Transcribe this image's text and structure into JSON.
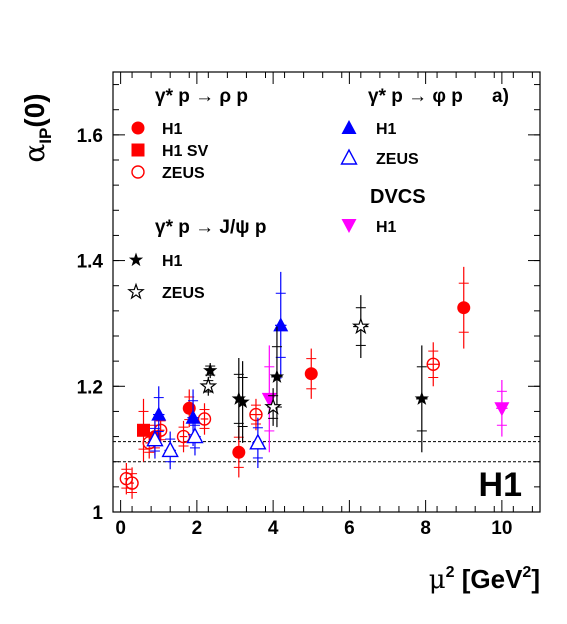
{
  "chart_data": {
    "type": "scatter",
    "ylabel_main": "α",
    "ylabel_sub": "IP",
    "ylabel_tail": "(0)",
    "xlabel_main": "μ",
    "xlabel_sup": "2",
    "xlabel_unit": " [GeV",
    "xlabel_unit_sup": "2",
    "xlabel_close": "]",
    "xlim": [
      -0.2,
      11
    ],
    "ylim": [
      1.0,
      1.7
    ],
    "x_ticks": [
      0,
      2,
      4,
      6,
      8,
      10
    ],
    "y_ticks": [
      1,
      1.2,
      1.4,
      1.6
    ],
    "x_tick_labels": [
      "0",
      "2",
      "4",
      "6",
      "8",
      "10"
    ],
    "y_tick_labels": [
      "1",
      "1.2",
      "1.4",
      "1.6"
    ],
    "reference_lines": [
      1.08,
      1.112
    ],
    "panel_label": "a)",
    "experiment_logo": "H1",
    "legend": {
      "rho_title": "γ* p → ρ p",
      "phi_title": "γ* p → φ p",
      "jpsi_title": "γ* p → J/ψ p",
      "dvcs_title": "DVCS",
      "entries": {
        "rho_h1": "H1",
        "rho_h1sv": "H1 SV",
        "rho_zeus": "ZEUS",
        "phi_h1": "H1",
        "phi_zeus": "ZEUS",
        "dvcs_h1": "H1",
        "jpsi_h1": "H1",
        "jpsi_zeus": "ZEUS"
      }
    },
    "series": [
      {
        "key": "rho_h1",
        "marker": "circle-filled",
        "color": "#ff0000",
        "points": [
          {
            "x": 0.9,
            "y": 1.12,
            "ey": 0.03,
            "ex": 0.1
          },
          {
            "x": 1.8,
            "y": 1.165,
            "ey": 0.03,
            "ex": 0.15
          },
          {
            "x": 3.1,
            "y": 1.095,
            "ey": 0.04,
            "ex": 0.15
          },
          {
            "x": 5.0,
            "y": 1.22,
            "ey": 0.04,
            "ex": 0.15
          },
          {
            "x": 9.0,
            "y": 1.325,
            "ey": 0.065,
            "ex": 0.15
          }
        ]
      },
      {
        "key": "rho_h1sv",
        "marker": "square-filled",
        "color": "#ff0000",
        "points": [
          {
            "x": 0.6,
            "y": 1.13,
            "ey": 0.05,
            "ex": 0.1
          }
        ]
      },
      {
        "key": "rho_zeus",
        "marker": "circle-open",
        "color": "#ff0000",
        "points": [
          {
            "x": 0.15,
            "y": 1.053,
            "ey": 0.025,
            "ex": 0.05
          },
          {
            "x": 0.3,
            "y": 1.046,
            "ey": 0.025,
            "ex": 0.05
          },
          {
            "x": 0.75,
            "y": 1.11,
            "ey": 0.025,
            "ex": 0.1
          },
          {
            "x": 1.05,
            "y": 1.13,
            "ey": 0.025,
            "ex": 0.1
          },
          {
            "x": 1.65,
            "y": 1.12,
            "ey": 0.025,
            "ex": 0.1
          },
          {
            "x": 2.2,
            "y": 1.148,
            "ey": 0.025,
            "ex": 0.1
          },
          {
            "x": 3.55,
            "y": 1.155,
            "ey": 0.025,
            "ex": 0.15
          },
          {
            "x": 8.2,
            "y": 1.235,
            "ey": 0.035,
            "ex": 0.15
          }
        ]
      },
      {
        "key": "phi_h1",
        "marker": "triangle-up-filled",
        "color": "#0000ff",
        "points": [
          {
            "x": 1.0,
            "y": 1.155,
            "ey": 0.045,
            "ex": 0.15
          },
          {
            "x": 1.9,
            "y": 1.15,
            "ey": 0.045,
            "ex": 0.15
          },
          {
            "x": 4.2,
            "y": 1.297,
            "ey": 0.085,
            "ex": 0.15
          }
        ]
      },
      {
        "key": "phi_zeus",
        "marker": "triangle-up-open",
        "color": "#0000ff",
        "points": [
          {
            "x": 0.9,
            "y": 1.115,
            "ey": 0.03,
            "ex": 0.15
          },
          {
            "x": 1.3,
            "y": 1.098,
            "ey": 0.03,
            "ex": 0.15
          },
          {
            "x": 1.95,
            "y": 1.12,
            "ey": 0.03,
            "ex": 0.15
          },
          {
            "x": 3.6,
            "y": 1.11,
            "ey": 0.04,
            "ex": 0.15
          }
        ]
      },
      {
        "key": "dvcs_h1",
        "marker": "triangle-down-filled",
        "color": "#ff00ff",
        "points": [
          {
            "x": 3.9,
            "y": 1.18,
            "ey": 0.085,
            "ex": 0.1
          },
          {
            "x": 10.0,
            "y": 1.165,
            "ey": 0.045,
            "ex": 0.15
          }
        ]
      },
      {
        "key": "jpsi_h1",
        "marker": "star-filled",
        "color": "#000000",
        "points": [
          {
            "x": 2.35,
            "y": 1.225,
            "ey": 0.012,
            "ex": 0.1
          },
          {
            "x": 3.1,
            "y": 1.18,
            "ey": 0.065,
            "ex": 0.1
          },
          {
            "x": 3.2,
            "y": 1.175,
            "ey": 0.065,
            "ex": 0.1
          },
          {
            "x": 4.1,
            "y": 1.215,
            "ey": 0.08,
            "ex": 0.15
          },
          {
            "x": 7.9,
            "y": 1.18,
            "ey": 0.085,
            "ex": 0.15
          }
        ]
      },
      {
        "key": "jpsi_zeus",
        "marker": "star-open",
        "color": "#000000",
        "points": [
          {
            "x": 2.3,
            "y": 1.2,
            "ey": 0.015,
            "ex": 0.1
          },
          {
            "x": 4.0,
            "y": 1.167,
            "ey": 0.03,
            "ex": 0.15
          },
          {
            "x": 6.3,
            "y": 1.295,
            "ey": 0.05,
            "ex": 0.2
          }
        ]
      }
    ]
  }
}
